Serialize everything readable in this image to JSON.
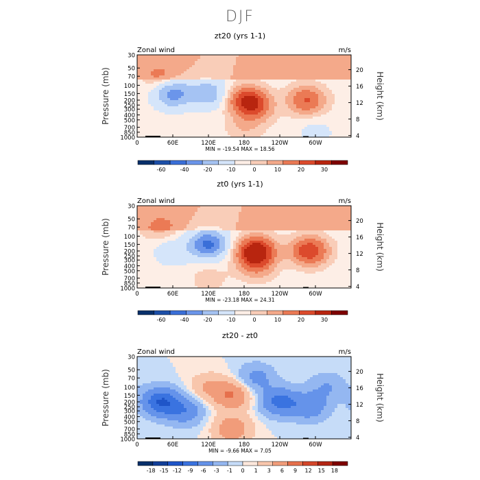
{
  "figure": {
    "title": "DJF"
  },
  "chart_data": [
    {
      "type": "heatmap",
      "title": "zt20 (yrs 1-1)",
      "left_label": "Zonal wind",
      "right_label": "m/s",
      "ylabel": "Pressure (mb)",
      "ylabel_right": "Height (km)",
      "x_ticks": [
        "0",
        "60E",
        "120E",
        "180",
        "120W",
        "60W"
      ],
      "y_ticks": [
        "30",
        "50",
        "70",
        "100",
        "150",
        "200",
        "250",
        "300",
        "400",
        "500",
        "700",
        "850",
        "1000"
      ],
      "height_ticks": [
        "20",
        "16",
        "12",
        "8",
        "4"
      ],
      "stats": "MIN = -19.54   MAX =  18.56",
      "colorbar_labels": [
        "-60",
        "-40",
        "-20",
        "-10",
        "0",
        "10",
        "20",
        "30"
      ],
      "blobs": [
        {
          "lon": 60,
          "p": 150,
          "v": -14
        },
        {
          "lon": 120,
          "p": 150,
          "v": -10
        },
        {
          "lon": 185,
          "p": 200,
          "v": 18
        },
        {
          "lon": 285,
          "p": 200,
          "v": 14
        },
        {
          "lon": 200,
          "p": 300,
          "v": 8
        },
        {
          "lon": 40,
          "p": 70,
          "v": 6
        },
        {
          "lon": 180,
          "p": 700,
          "v": 4
        },
        {
          "lon": 300,
          "p": 850,
          "v": -3
        }
      ]
    },
    {
      "type": "heatmap",
      "title": "zt0 (yrs 1-1)",
      "left_label": "Zonal wind",
      "right_label": "m/s",
      "ylabel": "Pressure (mb)",
      "ylabel_right": "Height (km)",
      "x_ticks": [
        "0",
        "60E",
        "120E",
        "180",
        "120W",
        "60W"
      ],
      "y_ticks": [
        "30",
        "50",
        "70",
        "100",
        "150",
        "200",
        "250",
        "300",
        "400",
        "500",
        "700",
        "850",
        "1000"
      ],
      "height_ticks": [
        "20",
        "16",
        "12",
        "8",
        "4"
      ],
      "stats": "MIN = -23.18   MAX =  24.31",
      "colorbar_labels": [
        "-60",
        "-40",
        "-20",
        "-10",
        "0",
        "10",
        "20",
        "30"
      ],
      "blobs": [
        {
          "lon": 120,
          "p": 150,
          "v": -18
        },
        {
          "lon": 60,
          "p": 200,
          "v": -5
        },
        {
          "lon": 200,
          "p": 200,
          "v": 24
        },
        {
          "lon": 290,
          "p": 200,
          "v": 18
        },
        {
          "lon": 40,
          "p": 70,
          "v": 6
        },
        {
          "lon": 200,
          "p": 400,
          "v": 8
        },
        {
          "lon": 120,
          "p": 700,
          "v": 3
        }
      ]
    },
    {
      "type": "heatmap",
      "title": "zt20 - zt0",
      "left_label": "Zonal wind",
      "right_label": "m/s",
      "ylabel": "Pressure (mb)",
      "ylabel_right": "Height (km)",
      "x_ticks": [
        "0",
        "60E",
        "120E",
        "180",
        "120W",
        "60W"
      ],
      "y_ticks": [
        "30",
        "50",
        "70",
        "100",
        "150",
        "200",
        "250",
        "300",
        "400",
        "500",
        "700",
        "850",
        "1000"
      ],
      "height_ticks": [
        "20",
        "16",
        "12",
        "8",
        "4"
      ],
      "stats": "MIN =  -9.66   MAX =    7.05",
      "colorbar_labels": [
        "-18",
        "-15",
        "-12",
        "-9",
        "-6",
        "-3",
        "-1",
        "0",
        "1",
        "3",
        "6",
        "9",
        "12",
        "15",
        "18"
      ],
      "blobs": [
        {
          "lon": 40,
          "p": 200,
          "v": -9
        },
        {
          "lon": 80,
          "p": 300,
          "v": -5
        },
        {
          "lon": 160,
          "p": 150,
          "v": 6
        },
        {
          "lon": 240,
          "p": 200,
          "v": -7
        },
        {
          "lon": 290,
          "p": 250,
          "v": -5
        },
        {
          "lon": 160,
          "p": 700,
          "v": 5
        },
        {
          "lon": 200,
          "p": 70,
          "v": -4
        },
        {
          "lon": 320,
          "p": 100,
          "v": -3
        },
        {
          "lon": 120,
          "p": 100,
          "v": 3
        }
      ]
    }
  ]
}
